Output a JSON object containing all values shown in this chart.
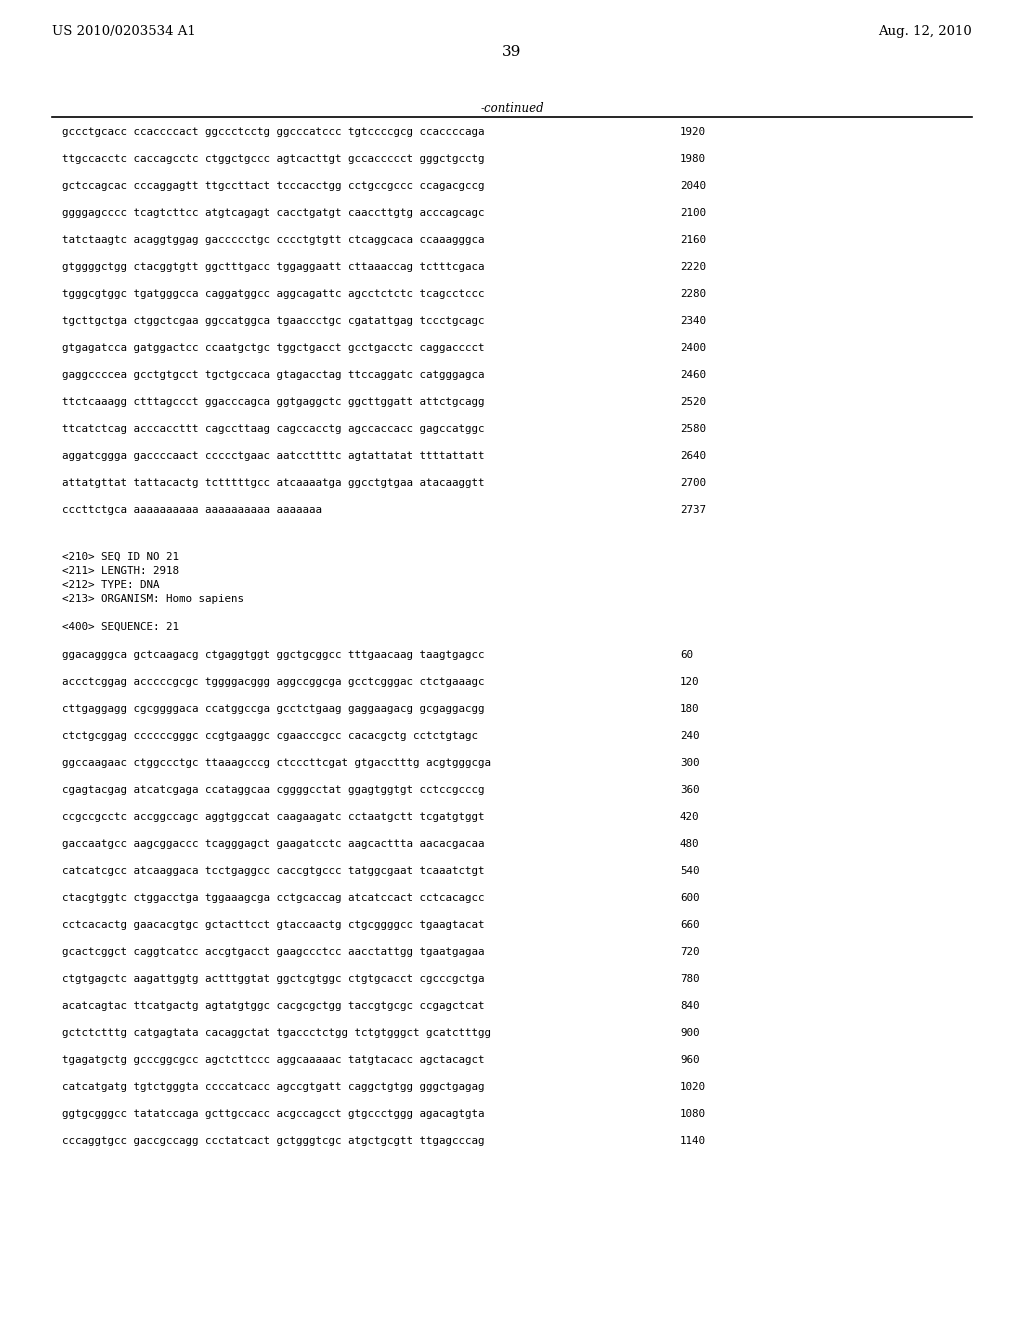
{
  "header_left": "US 2010/0203534 A1",
  "header_right": "Aug. 12, 2010",
  "page_number": "39",
  "continued_label": "-continued",
  "background_color": "#ffffff",
  "text_color": "#000000",
  "font_size_header": 9.5,
  "font_size_body": 7.8,
  "font_size_page": 11,
  "sequence_continued": [
    [
      "gccctgcacc ccaccccact ggccctcctg ggcccatccc tgtccccgcg ccaccccaga",
      "1920"
    ],
    [
      "ttgccacctc caccagcctc ctggctgccc agtcacttgt gccaccccct gggctgcctg",
      "1980"
    ],
    [
      "gctccagcac cccaggagtt ttgccttact tcccacctgg cctgccgccc ccagacgccg",
      "2040"
    ],
    [
      "ggggagcccc tcagtcttcc atgtcagagt cacctgatgt caaccttgtg acccagcagc",
      "2100"
    ],
    [
      "tatctaagtc acaggtggag gaccccctgc cccctgtgtt ctcaggcaca ccaaagggca",
      "2160"
    ],
    [
      "gtggggctgg ctacggtgtt ggctttgacc tggaggaatt cttaaaccag tctttcgaca",
      "2220"
    ],
    [
      "tgggcgtggc tgatgggcca caggatggcc aggcagattc agcctctctc tcagcctccc",
      "2280"
    ],
    [
      "tgcttgctga ctggctcgaa ggccatggca tgaaccctgc cgatattgag tccctgcagc",
      "2340"
    ],
    [
      "gtgagatcca gatggactcc ccaatgctgc tggctgacct gcctgacctc caggacccct",
      "2400"
    ],
    [
      "gaggccccea gcctgtgcct tgctgccaca gtagacctag ttccaggatc catgggagca",
      "2460"
    ],
    [
      "ttctcaaagg ctttagccct ggacccagca ggtgaggctc ggcttggatt attctgcagg",
      "2520"
    ],
    [
      "ttcatctcag acccaccttt cagccttaag cagccacctg agccaccacc gagccatggc",
      "2580"
    ],
    [
      "aggatcggga gaccccaact ccccctgaac aatccttttc agtattatat ttttattatt",
      "2640"
    ],
    [
      "attatgttat tattacactg tctttttgcc atcaaaatga ggcctgtgaa atacaaggtt",
      "2700"
    ],
    [
      "cccttctgca aaaaaaaaaa aaaaaaaaaa aaaaaaa",
      "2737"
    ]
  ],
  "metadata_block": [
    "<210> SEQ ID NO 21",
    "<211> LENGTH: 2918",
    "<212> TYPE: DNA",
    "<213> ORGANISM: Homo sapiens",
    "",
    "<400> SEQUENCE: 21"
  ],
  "sequence_21": [
    [
      "ggacagggca gctcaagacg ctgaggtggt ggctgcggcc tttgaacaag taagtgagcc",
      "60"
    ],
    [
      "accctcggag acccccgcgc tggggacggg aggccggcga gcctcgggac ctctgaaagc",
      "120"
    ],
    [
      "cttgaggagg cgcggggaca ccatggccga gcctctgaag gaggaagacg gcgaggacgg",
      "180"
    ],
    [
      "ctctgcggag ccccccgggc ccgtgaaggc cgaacccgcc cacacgctg cctctgtagc",
      "240"
    ],
    [
      "ggccaagaac ctggccctgc ttaaagcccg ctcccttcgat gtgacctttg acgtgggcga",
      "300"
    ],
    [
      "cgagtacgag atcatcgaga ccataggcaa cggggcctat ggagtggtgt cctccgcccg",
      "360"
    ],
    [
      "ccgccgcctc accggccagc aggtggccat caagaagatc cctaatgctt tcgatgtggt",
      "420"
    ],
    [
      "gaccaatgcc aagcggaccc tcagggagct gaagatcctc aagcacttta aacacgacaa",
      "480"
    ],
    [
      "catcatcgcc atcaaggaca tcctgaggcc caccgtgccc tatggcgaat tcaaatctgt",
      "540"
    ],
    [
      "ctacgtggtc ctggacctga tggaaagcga cctgcaccag atcatccact cctcacagcc",
      "600"
    ],
    [
      "cctcacactg gaacacgtgc gctacttcct gtaccaactg ctgcggggcc tgaagtacat",
      "660"
    ],
    [
      "gcactcggct caggtcatcc accgtgacct gaagccctcc aacctattgg tgaatgagaa",
      "720"
    ],
    [
      "ctgtgagctc aagattggtg actttggtat ggctcgtggc ctgtgcacct cgcccgctga",
      "780"
    ],
    [
      "acatcagtac ttcatgactg agtatgtggc cacgcgctgg taccgtgcgc ccgagctcat",
      "840"
    ],
    [
      "gctctctttg catgagtata cacaggctat tgaccctctgg tctgtgggct gcatctttgg",
      "900"
    ],
    [
      "tgagatgctg gcccggcgcc agctcttccc aggcaaaaac tatgtacacc agctacagct",
      "960"
    ],
    [
      "catcatgatg tgtctgggta ccccatcacc agccgtgatt caggctgtgg gggctgagag",
      "1020"
    ],
    [
      "ggtgcgggcc tatatccaga gcttgccacc acgccagcct gtgccctggg agacagtgta",
      "1080"
    ],
    [
      "cccaggtgcc gaccgccagg ccctatcact gctgggtcgc atgctgcgtt ttgagcccag",
      "1140"
    ]
  ]
}
